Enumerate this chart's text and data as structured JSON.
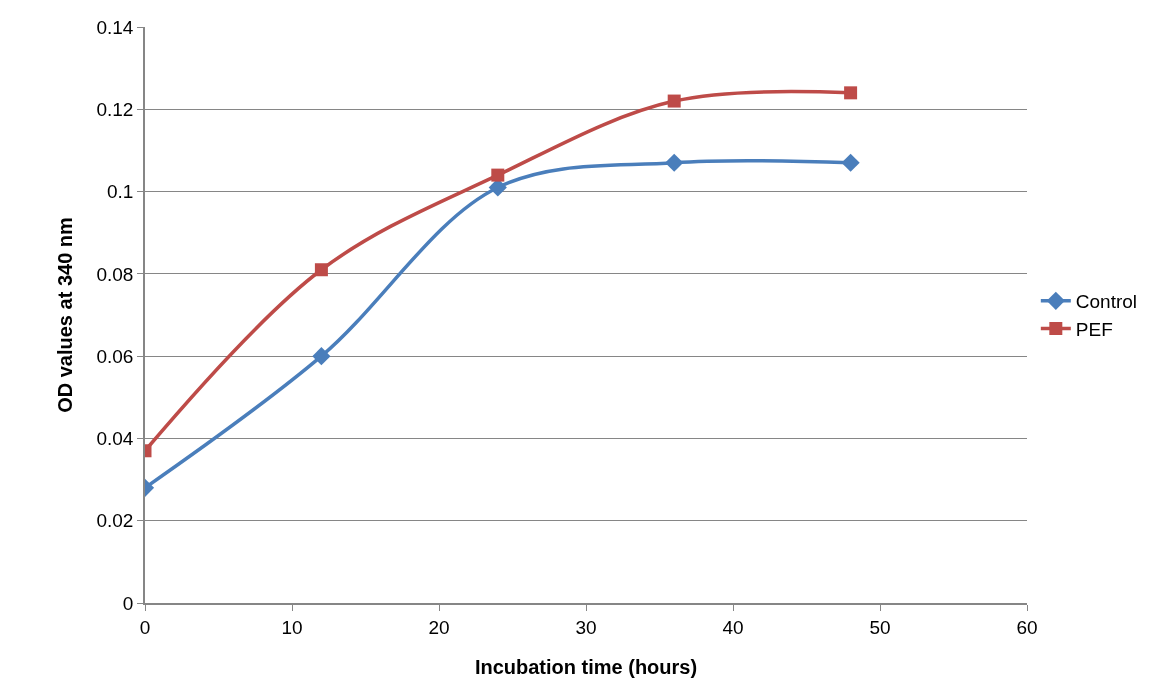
{
  "chart_data": {
    "type": "line",
    "xlabel": "Incubation time (hours)",
    "ylabel": "OD values at 340 nm",
    "x": [
      0,
      12,
      24,
      36,
      48
    ],
    "series": [
      {
        "name": "Control",
        "color": "#4a7ebb",
        "marker": "diamond",
        "values": [
          0.028,
          0.06,
          0.101,
          0.107,
          0.107
        ]
      },
      {
        "name": "PEF",
        "color": "#be4b48",
        "marker": "square",
        "values": [
          0.037,
          0.081,
          0.104,
          0.122,
          0.124
        ]
      }
    ],
    "xlim": [
      0,
      60
    ],
    "xticks": [
      0,
      10,
      20,
      30,
      40,
      50,
      60
    ],
    "ylim": [
      0,
      0.14
    ],
    "yticks": [
      0,
      0.02,
      0.04,
      0.06,
      0.08,
      0.1,
      0.12,
      0.14
    ],
    "grid": "y",
    "legend": "right",
    "line_style": "solid"
  }
}
